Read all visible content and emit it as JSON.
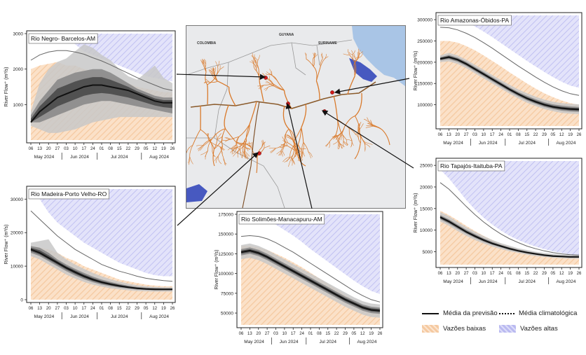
{
  "colors": {
    "low": "#f5c9a0",
    "high": "#b9b9f0",
    "mean": "#111111",
    "ens_dark": "#4a4a4a",
    "ens_mid": "#8a8a8a",
    "ens_light": "#c8c8c8",
    "river": "#d9792a",
    "water": "#2a3fb8",
    "gauge": "#d11a1a"
  },
  "chart_data": [
    {
      "id": "negro",
      "type": "area",
      "title": "Rio Negro- Barcelos-AM",
      "ylabel": "River Flow⁺ (m³/s)",
      "ylim": [
        0,
        3000
      ],
      "yticks": [
        1000,
        2000,
        3000
      ],
      "xticks": [
        "06",
        "13",
        "20",
        "27",
        "03",
        "10",
        "17",
        "24",
        "01",
        "08",
        "15",
        "22",
        "29",
        "05",
        "12",
        "19",
        "26"
      ],
      "months": [
        "May 2024",
        "Jun 2024",
        "Jul 2024",
        "Aug 2024"
      ],
      "low_upper": [
        2000,
        2100,
        2150,
        2200,
        2100,
        2100,
        2000,
        1950,
        1900,
        1800,
        1700,
        1600,
        1500,
        1450,
        1400,
        1350,
        1350
      ],
      "high_lower": [
        3000,
        3000,
        3000,
        3000,
        3000,
        2700,
        2500,
        2400,
        2300,
        2200,
        2100,
        2000,
        1900,
        1800,
        1750,
        1700,
        1650
      ],
      "climatology": [
        2250,
        2400,
        2480,
        2520,
        2520,
        2480,
        2420,
        2320,
        2230,
        2120,
        2000,
        1880,
        1760,
        1650,
        1550,
        1450,
        1400
      ],
      "p10": [
        400,
        300,
        200,
        200,
        250,
        300,
        400,
        500,
        550,
        600,
        650,
        650,
        650,
        650,
        650,
        650,
        650
      ],
      "p25": [
        500,
        500,
        600,
        700,
        800,
        900,
        1000,
        1050,
        1100,
        1100,
        1050,
        1000,
        950,
        900,
        850,
        800,
        750
      ],
      "mean": [
        500,
        800,
        1000,
        1200,
        1300,
        1400,
        1500,
        1550,
        1550,
        1500,
        1450,
        1400,
        1300,
        1200,
        1100,
        1050,
        1050
      ],
      "p75": [
        700,
        1100,
        1400,
        1700,
        1800,
        1900,
        1950,
        2000,
        2000,
        1900,
        1750,
        1600,
        1450,
        1350,
        1250,
        1200,
        1200
      ],
      "p90": [
        800,
        1600,
        2000,
        2200,
        2300,
        2500,
        2700,
        2600,
        2400,
        2250,
        2000,
        1800,
        1700,
        1900,
        2100,
        1750,
        1600
      ]
    },
    {
      "id": "madeira",
      "type": "area",
      "title": "Rio Madeira-Porto Velho-RO",
      "ylabel": "River Flow⁺ (m³/s)",
      "ylim": [
        0,
        33000
      ],
      "yticks": [
        0,
        10000,
        20000,
        30000
      ],
      "xticks": [
        "06",
        "13",
        "20",
        "27",
        "03",
        "10",
        "17",
        "24",
        "01",
        "08",
        "15",
        "22",
        "29",
        "05",
        "12",
        "19",
        "26"
      ],
      "months": [
        "May 2024",
        "Jun 2024",
        "Jul 2024",
        "Aug 2024"
      ],
      "low_upper": [
        16000,
        15500,
        15000,
        14000,
        12500,
        11500,
        10000,
        9000,
        8000,
        7000,
        6000,
        5500,
        5000,
        4500,
        4200,
        4000,
        4000
      ],
      "high_lower": [
        32000,
        30000,
        26000,
        23000,
        21000,
        19000,
        17000,
        15500,
        14000,
        12500,
        11000,
        10000,
        9000,
        8000,
        7300,
        7000,
        7000
      ],
      "climatology": [
        26500,
        24000,
        21500,
        19000,
        17000,
        15000,
        13500,
        12000,
        10500,
        9500,
        8500,
        7800,
        7000,
        6400,
        6000,
        5700,
        5500
      ],
      "p10": [
        13000,
        12000,
        10500,
        9000,
        7500,
        6300,
        5300,
        4500,
        3900,
        3400,
        3100,
        2800,
        2600,
        2500,
        2400,
        2400,
        2400
      ],
      "p25": [
        14000,
        13000,
        11500,
        10000,
        8500,
        7200,
        6100,
        5200,
        4500,
        4000,
        3600,
        3300,
        3000,
        2900,
        2800,
        2800,
        2800
      ],
      "mean": [
        15000,
        14000,
        12500,
        11000,
        9500,
        8200,
        7000,
        6000,
        5200,
        4600,
        4100,
        3700,
        3400,
        3200,
        3100,
        3100,
        3100
      ],
      "p75": [
        16000,
        15500,
        14000,
        12000,
        10500,
        9200,
        8000,
        6900,
        6000,
        5300,
        4700,
        4200,
        3800,
        3600,
        3500,
        3400,
        3400
      ],
      "p90": [
        17000,
        17500,
        18000,
        14000,
        12000,
        10500,
        9200,
        8000,
        7000,
        6100,
        5400,
        4800,
        4300,
        4000,
        3800,
        3700,
        3700
      ]
    },
    {
      "id": "solimoes",
      "type": "area",
      "title": "Rio Solimões-Manacapuru-AM",
      "ylabel": "River Flow⁺ (m³/s)",
      "ylim": [
        35000,
        175000
      ],
      "yticks": [
        50000,
        75000,
        100000,
        125000,
        150000,
        175000
      ],
      "xticks": [
        "06",
        "13",
        "20",
        "27",
        "03",
        "10",
        "17",
        "24",
        "01",
        "08",
        "15",
        "22",
        "29",
        "05",
        "12",
        "19",
        "26"
      ],
      "months": [
        "May 2024",
        "Jun 2024",
        "Jul 2024",
        "Aug 2024"
      ],
      "low_upper": [
        135000,
        135000,
        133000,
        130000,
        125000,
        120000,
        114000,
        108000,
        101000,
        94000,
        87000,
        80000,
        73000,
        66000,
        60000,
        55000,
        52000
      ],
      "high_lower": [
        175000,
        175000,
        175000,
        170000,
        162000,
        155000,
        148000,
        140000,
        131000,
        123000,
        115000,
        107000,
        99000,
        91000,
        84000,
        78000,
        74000
      ],
      "climatology": [
        147000,
        148000,
        147000,
        144000,
        139000,
        133000,
        127000,
        120000,
        113000,
        106000,
        99000,
        92000,
        85000,
        78000,
        72000,
        67000,
        64000
      ],
      "p10": [
        118000,
        120000,
        117000,
        112000,
        106000,
        100000,
        94000,
        88000,
        82000,
        76000,
        70000,
        64000,
        58000,
        53000,
        48000,
        45000,
        44000
      ],
      "p25": [
        123000,
        125000,
        122000,
        117000,
        111000,
        105000,
        99000,
        93000,
        87000,
        81000,
        75000,
        69000,
        63000,
        58000,
        53000,
        50000,
        49000
      ],
      "mean": [
        127000,
        129000,
        126000,
        121000,
        115000,
        109000,
        103000,
        97000,
        91000,
        85000,
        79000,
        73000,
        67000,
        62000,
        57000,
        54000,
        53000
      ],
      "p75": [
        131000,
        133000,
        130000,
        125000,
        119000,
        113000,
        107000,
        101000,
        95000,
        89000,
        83000,
        77000,
        71000,
        66000,
        61000,
        58000,
        57000
      ],
      "p90": [
        136000,
        138000,
        135000,
        130000,
        124000,
        118000,
        112000,
        106000,
        100000,
        94000,
        88000,
        82000,
        76000,
        70000,
        65000,
        62000,
        61000
      ]
    },
    {
      "id": "amazonas",
      "type": "area",
      "title": "Rio Amazonas-Óbidos-PA",
      "ylabel": "River Flow⁺ (m³/s)",
      "ylim": [
        50000,
        310000
      ],
      "yticks": [
        100000,
        150000,
        200000,
        250000,
        300000
      ],
      "xticks": [
        "06",
        "13",
        "20",
        "27",
        "03",
        "10",
        "17",
        "24",
        "01",
        "08",
        "15",
        "22",
        "29",
        "05",
        "12",
        "19",
        "26"
      ],
      "months": [
        "May 2024",
        "Jun 2024",
        "Jul 2024",
        "Aug 2024"
      ],
      "low_upper": [
        250000,
        250000,
        246000,
        238000,
        228000,
        216000,
        203000,
        190000,
        176000,
        163000,
        150000,
        138000,
        127000,
        118000,
        110000,
        104000,
        100000
      ],
      "high_lower": [
        310000,
        310000,
        305000,
        295000,
        284000,
        272000,
        259000,
        245000,
        231000,
        217000,
        203000,
        190000,
        177000,
        165000,
        154000,
        145000,
        140000
      ],
      "climatology": [
        282000,
        281000,
        276000,
        268000,
        258000,
        246000,
        233000,
        219000,
        205000,
        191000,
        178000,
        165000,
        153000,
        142000,
        133000,
        126000,
        122000
      ],
      "p10": [
        200000,
        202000,
        196000,
        186000,
        174000,
        162000,
        150000,
        138000,
        126000,
        115000,
        105000,
        97000,
        90000,
        85000,
        81000,
        79000,
        78000
      ],
      "p25": [
        204000,
        207000,
        201000,
        191000,
        179000,
        167000,
        155000,
        143000,
        131000,
        120000,
        110000,
        102000,
        95000,
        90000,
        86000,
        84000,
        83000
      ],
      "mean": [
        208000,
        212000,
        206000,
        196000,
        184000,
        172000,
        160000,
        148000,
        136000,
        125000,
        115000,
        107000,
        100000,
        95000,
        92000,
        90000,
        89000
      ],
      "p75": [
        212000,
        217000,
        211000,
        201000,
        189000,
        177000,
        165000,
        153000,
        141000,
        130000,
        121000,
        113000,
        106000,
        101000,
        98000,
        96000,
        95000
      ],
      "p90": [
        216000,
        222000,
        216000,
        206000,
        194000,
        182000,
        170000,
        158000,
        147000,
        136000,
        127000,
        119000,
        112000,
        107000,
        104000,
        102000,
        101000
      ]
    },
    {
      "id": "tapajos",
      "type": "area",
      "title": "Rio Tapajós-Itaituba-PA",
      "ylabel": "River Flow⁺ (m³/s)",
      "ylim": [
        2000,
        26000
      ],
      "yticks": [
        5000,
        10000,
        15000,
        20000,
        25000
      ],
      "xticks": [
        "06",
        "13",
        "20",
        "27",
        "03",
        "10",
        "17",
        "24",
        "01",
        "08",
        "15",
        "22",
        "29",
        "05",
        "12",
        "19",
        "26"
      ],
      "months": [
        "May 2024",
        "Jun 2024",
        "Jul 2024",
        "Aug 2024"
      ],
      "low_upper": [
        14500,
        13500,
        12300,
        11000,
        9800,
        8700,
        7700,
        6900,
        6200,
        5600,
        5100,
        4700,
        4400,
        4100,
        3900,
        3800,
        3700
      ],
      "high_lower": [
        24000,
        22000,
        19500,
        17000,
        14800,
        12900,
        11300,
        9900,
        8700,
        7700,
        6900,
        6200,
        5600,
        5100,
        4700,
        4400,
        4200
      ],
      "climatology": [
        21000,
        19500,
        17500,
        15500,
        13600,
        11900,
        10400,
        9100,
        8000,
        7100,
        6300,
        5700,
        5200,
        4800,
        4500,
        4300,
        4200
      ],
      "p10": [
        12000,
        11000,
        9800,
        8700,
        7700,
        6900,
        6200,
        5600,
        5100,
        4700,
        4300,
        4000,
        3800,
        3600,
        3500,
        3400,
        3400
      ],
      "p25": [
        12500,
        11500,
        10300,
        9200,
        8200,
        7300,
        6600,
        6000,
        5400,
        5000,
        4600,
        4300,
        4000,
        3800,
        3700,
        3600,
        3600
      ],
      "mean": [
        13000,
        12000,
        10800,
        9600,
        8600,
        7700,
        6900,
        6300,
        5700,
        5200,
        4800,
        4500,
        4200,
        4000,
        3900,
        3800,
        3800
      ],
      "p75": [
        13500,
        12500,
        11300,
        10100,
        9100,
        8100,
        7300,
        6600,
        6000,
        5500,
        5100,
        4700,
        4400,
        4200,
        4100,
        4000,
        4000
      ],
      "p90": [
        14200,
        13200,
        11900,
        10700,
        9600,
        8600,
        7700,
        7000,
        6400,
        5800,
        5400,
        5000,
        4700,
        4500,
        4300,
        4200,
        4200
      ]
    }
  ],
  "map": {
    "labels": [
      "COLOMBIA",
      "SURINAME",
      "GUYANA"
    ]
  },
  "legend": {
    "mean_forecast": "Média da previsão",
    "mean_climatology": "Média climatológica",
    "low_flows": "Vazões baixas",
    "high_flows": "Vazões altas"
  }
}
